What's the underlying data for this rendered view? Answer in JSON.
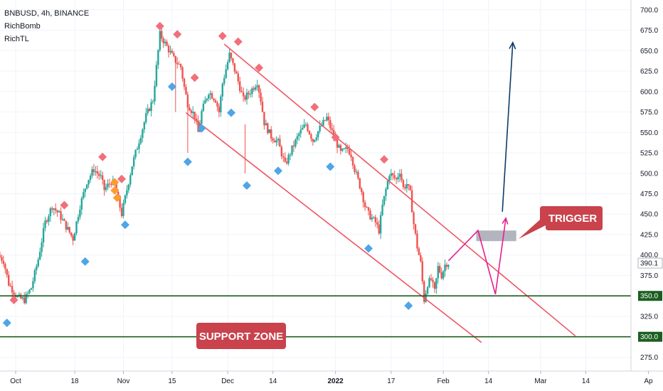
{
  "legend": {
    "symbol_line": "BNBUSD, 4h, BINANCE",
    "indicator_1": "RichBomb",
    "indicator_2": "RichTL"
  },
  "colors": {
    "up": "#26a69a",
    "down": "#ef5350",
    "channel": "#f05561",
    "support": "#1b5e20",
    "projection": "#e91e8c",
    "target_arrow": "#0d3b66",
    "callout": "#c9424c",
    "trigger_box": "#b2b5be",
    "marker_top": "#f0707a",
    "marker_bottom": "#4ea5e8",
    "marker_orange": "#ff9b2f"
  },
  "chart_data": {
    "type": "candlestick",
    "symbol": "BNBUSD",
    "timeframe": "4h",
    "exchange": "BINANCE",
    "ylim": [
      258,
      712
    ],
    "y_ticks": [
      275,
      300,
      325,
      350,
      375,
      400,
      425,
      450,
      475,
      500,
      525,
      550,
      575,
      600,
      625,
      650,
      675,
      700
    ],
    "y_tick_labels": [
      "275.0",
      "300.0",
      "325.0",
      "350.0",
      "375.0",
      "400.0",
      "425.0",
      "450.0",
      "475.0",
      "500.0",
      "525.0",
      "550.0",
      "575.0",
      "600.0",
      "625.0",
      "650.0",
      "675.0",
      "700.0"
    ],
    "x_range_days": [
      -4.5,
      177
    ],
    "x_ticks": [
      {
        "label": "Oct",
        "day": 0,
        "bold": false
      },
      {
        "label": "18",
        "day": 17,
        "bold": false
      },
      {
        "label": "Nov",
        "day": 31,
        "bold": false
      },
      {
        "label": "15",
        "day": 45,
        "bold": false
      },
      {
        "label": "Dec",
        "day": 61,
        "bold": false
      },
      {
        "label": "14",
        "day": 74,
        "bold": false
      },
      {
        "label": "2022",
        "day": 92,
        "bold": true
      },
      {
        "label": "17",
        "day": 108,
        "bold": false
      },
      {
        "label": "Feb",
        "day": 123,
        "bold": false
      },
      {
        "label": "14",
        "day": 136,
        "bold": false
      },
      {
        "label": "Mar",
        "day": 151,
        "bold": false
      },
      {
        "label": "14",
        "day": 164,
        "bold": false
      },
      {
        "label": "Ap",
        "day": 182,
        "bold": false
      }
    ],
    "price_path": [
      [
        -4.5,
        400
      ],
      [
        -3,
        393
      ],
      [
        -1.5,
        365
      ],
      [
        1,
        348
      ],
      [
        3,
        345
      ],
      [
        5,
        360
      ],
      [
        7,
        395
      ],
      [
        9,
        440
      ],
      [
        11,
        460
      ],
      [
        13,
        450
      ],
      [
        15,
        435
      ],
      [
        17,
        420
      ],
      [
        19,
        460
      ],
      [
        21,
        490
      ],
      [
        23,
        505
      ],
      [
        25,
        495
      ],
      [
        26,
        480
      ],
      [
        28,
        490
      ],
      [
        29,
        486
      ],
      [
        31,
        450
      ],
      [
        32,
        470
      ],
      [
        34,
        510
      ],
      [
        36,
        540
      ],
      [
        38,
        570
      ],
      [
        40,
        590
      ],
      [
        42,
        670
      ],
      [
        44,
        655
      ],
      [
        46,
        640
      ],
      [
        48,
        630
      ],
      [
        49,
        605
      ],
      [
        50,
        585
      ],
      [
        52,
        570
      ],
      [
        53,
        550
      ],
      [
        54,
        575
      ],
      [
        56,
        600
      ],
      [
        58,
        590
      ],
      [
        59,
        575
      ],
      [
        60,
        610
      ],
      [
        62,
        645
      ],
      [
        64,
        620
      ],
      [
        66,
        590
      ],
      [
        68,
        600
      ],
      [
        70,
        612
      ],
      [
        71,
        590
      ],
      [
        72,
        562
      ],
      [
        74,
        545
      ],
      [
        76,
        538
      ],
      [
        78,
        510
      ],
      [
        80,
        530
      ],
      [
        82,
        548
      ],
      [
        84,
        560
      ],
      [
        86,
        540
      ],
      [
        88,
        555
      ],
      [
        90,
        568
      ],
      [
        92,
        545
      ],
      [
        94,
        525
      ],
      [
        96,
        530
      ],
      [
        97,
        523
      ],
      [
        98,
        505
      ],
      [
        100,
        478
      ],
      [
        101,
        460
      ],
      [
        102,
        450
      ],
      [
        104,
        440
      ],
      [
        105,
        430
      ],
      [
        106,
        460
      ],
      [
        108,
        500
      ],
      [
        110,
        492
      ],
      [
        111,
        503
      ],
      [
        112,
        482
      ],
      [
        113,
        487
      ],
      [
        114,
        475
      ],
      [
        115,
        438
      ],
      [
        116,
        410
      ],
      [
        117,
        390
      ],
      [
        118,
        345
      ],
      [
        119,
        365
      ],
      [
        120,
        370
      ],
      [
        121,
        355
      ],
      [
        122,
        385
      ],
      [
        123,
        375
      ],
      [
        124,
        388
      ],
      [
        124.5,
        390
      ]
    ],
    "last_price": 390.1,
    "last_price_label": "390.1",
    "support_lines": [
      {
        "price": 350,
        "label": "350.0"
      },
      {
        "price": 300,
        "label": "300.0"
      }
    ],
    "channel_lines": [
      {
        "from": [
          60,
          658
        ],
        "to": [
          161,
          301
        ]
      },
      {
        "from": [
          49,
          574
        ],
        "to": [
          134,
          293
        ]
      }
    ],
    "trigger_zone": {
      "day_from": 132.5,
      "day_to": 144,
      "price_from": 417,
      "price_to": 430
    },
    "projection_path": [
      [
        124.5,
        393
      ],
      [
        133,
        430
      ],
      [
        138,
        352
      ],
      [
        141,
        445
      ]
    ],
    "target_arrow": {
      "from": [
        140,
        453
      ],
      "to": [
        143,
        660
      ]
    },
    "markers": [
      {
        "type": "top",
        "day": -0.5,
        "price": 345
      },
      {
        "type": "bottom",
        "day": -2.5,
        "price": 317
      },
      {
        "type": "top",
        "day": 14,
        "price": 461
      },
      {
        "type": "bottom",
        "day": 20,
        "price": 392
      },
      {
        "type": "top",
        "day": 25,
        "price": 520
      },
      {
        "type": "bottom",
        "day": 31.5,
        "price": 437
      },
      {
        "type": "top",
        "day": 30.5,
        "price": 493
      },
      {
        "type": "top",
        "day": 41.5,
        "price": 680
      },
      {
        "type": "bottom",
        "day": 45,
        "price": 606
      },
      {
        "type": "top",
        "day": 46.5,
        "price": 670
      },
      {
        "type": "bottom",
        "day": 49.5,
        "price": 514
      },
      {
        "type": "top",
        "day": 51.5,
        "price": 617
      },
      {
        "type": "bottom",
        "day": 53.5,
        "price": 555
      },
      {
        "type": "top",
        "day": 59.5,
        "price": 668
      },
      {
        "type": "bottom",
        "day": 62,
        "price": 574
      },
      {
        "type": "top",
        "day": 64,
        "price": 661
      },
      {
        "type": "bottom",
        "day": 66.5,
        "price": 485
      },
      {
        "type": "top",
        "day": 70,
        "price": 629
      },
      {
        "type": "bottom",
        "day": 75.5,
        "price": 503
      },
      {
        "type": "top",
        "day": 86,
        "price": 581
      },
      {
        "type": "top",
        "day": 92,
        "price": 544
      },
      {
        "type": "bottom",
        "day": 90.5,
        "price": 508
      },
      {
        "type": "bottom",
        "day": 101.5,
        "price": 408
      },
      {
        "type": "top",
        "day": 106,
        "price": 517
      },
      {
        "type": "bottom",
        "day": 113,
        "price": 338
      },
      {
        "type": "orange",
        "day": 28.5,
        "price": 489
      },
      {
        "type": "orange",
        "day": 28.5,
        "price": 479
      },
      {
        "type": "orange",
        "day": 29.2,
        "price": 470
      }
    ]
  },
  "annotations": {
    "trigger_label": "TRIGGER",
    "support_label": "SUPPORT ZONE"
  }
}
